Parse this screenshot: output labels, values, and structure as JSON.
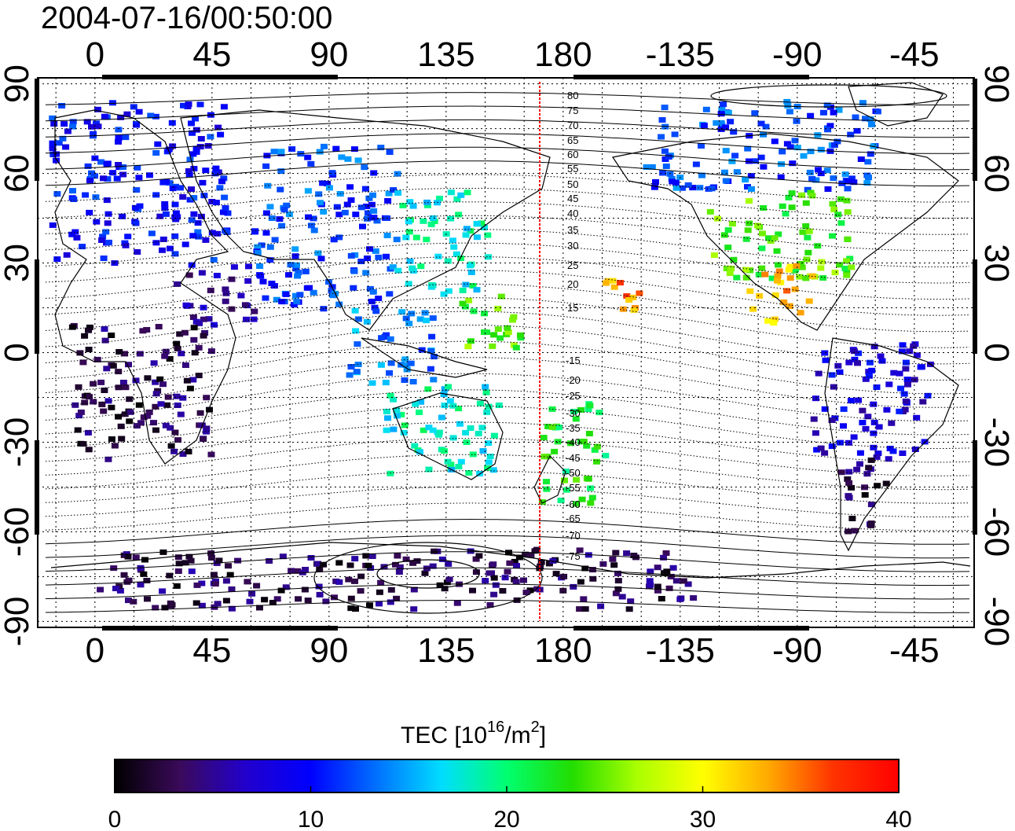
{
  "title": "2004-07-16/00:50:00",
  "map": {
    "lon_ticks_labels": [
      "0",
      "45",
      "90",
      "135",
      "180",
      "-135",
      "-90",
      "-45"
    ],
    "lon_ticks_values": [
      0,
      45,
      90,
      135,
      180,
      225,
      270,
      315
    ],
    "lon_range": [
      -22,
      338
    ],
    "lat_ticks_labels": [
      "90",
      "60",
      "30",
      "0",
      "-30",
      "-60",
      "-90"
    ],
    "lat_ticks_values": [
      90,
      60,
      30,
      0,
      -30,
      -60,
      -90
    ],
    "lat_range": [
      -92,
      92
    ],
    "grid": "dotted",
    "terminator_longitude": 167,
    "terminator_color": "#ff0000",
    "contour_labels_north": [
      "80",
      "75",
      "70",
      "65",
      "60",
      "55",
      "50",
      "45",
      "40",
      "35",
      "30",
      "25",
      "20",
      "15"
    ],
    "contour_labels_south": [
      "-15",
      "-20",
      "-25",
      "-30",
      "-35",
      "-40",
      "-45",
      "-50",
      "-55",
      "-60",
      "-65",
      "-70",
      "-75"
    ]
  },
  "colorbar": {
    "label": "TEC  [10",
    "label_sup1": "16",
    "label_mid": "/m",
    "label_sup2": "2",
    "label_end": "]",
    "tick_labels": [
      "0",
      "10",
      "20",
      "30",
      "40"
    ],
    "tick_values": [
      0,
      10,
      20,
      30,
      40
    ],
    "range": [
      0,
      40
    ],
    "colors": [
      "#000000",
      "#3a0a5a",
      "#2200cc",
      "#0000ff",
      "#0070ff",
      "#00ddff",
      "#00ff70",
      "#22dd00",
      "#aaff00",
      "#ffff00",
      "#ffaa00",
      "#ff3300",
      "#ff0000"
    ]
  },
  "chart_data": {
    "type": "heatmap",
    "title": "2004-07-16/00:50:00",
    "xlabel": "",
    "ylabel": "",
    "colorbar_label": "TEC [10^16/m^2]",
    "value_range": [
      0,
      40
    ],
    "regions": [
      {
        "lon": [
          -18,
          50
        ],
        "lat": [
          30,
          85
        ],
        "value": 10
      },
      {
        "lon": [
          30,
          60
        ],
        "lat": [
          10,
          30
        ],
        "value": 5
      },
      {
        "lon": [
          -10,
          45
        ],
        "lat": [
          -35,
          10
        ],
        "value": 3
      },
      {
        "lon": [
          60,
          115
        ],
        "lat": [
          15,
          70
        ],
        "value": 12
      },
      {
        "lon": [
          115,
          150
        ],
        "lat": [
          20,
          55
        ],
        "value": 18
      },
      {
        "lon": [
          95,
          130
        ],
        "lat": [
          -10,
          15
        ],
        "value": 14
      },
      {
        "lon": [
          110,
          155
        ],
        "lat": [
          -40,
          -10
        ],
        "value": 18
      },
      {
        "lon": [
          140,
          165
        ],
        "lat": [
          0,
          20
        ],
        "value": 24
      },
      {
        "lon": [
          170,
          195
        ],
        "lat": [
          -50,
          -15
        ],
        "value": 22
      },
      {
        "lon": [
          195,
          210
        ],
        "lat": [
          15,
          25
        ],
        "value": 34
      },
      {
        "lon": [
          210,
          300
        ],
        "lat": [
          55,
          85
        ],
        "value": 12
      },
      {
        "lon": [
          235,
          290
        ],
        "lat": [
          25,
          55
        ],
        "value": 24
      },
      {
        "lon": [
          250,
          275
        ],
        "lat": [
          10,
          30
        ],
        "value": 33
      },
      {
        "lon": [
          275,
          320
        ],
        "lat": [
          -35,
          5
        ],
        "value": 8
      },
      {
        "lon": [
          285,
          305
        ],
        "lat": [
          -60,
          -35
        ],
        "value": 3
      },
      {
        "lon": [
          0,
          230
        ],
        "lat": [
          -85,
          -65
        ],
        "value": 3
      }
    ]
  }
}
